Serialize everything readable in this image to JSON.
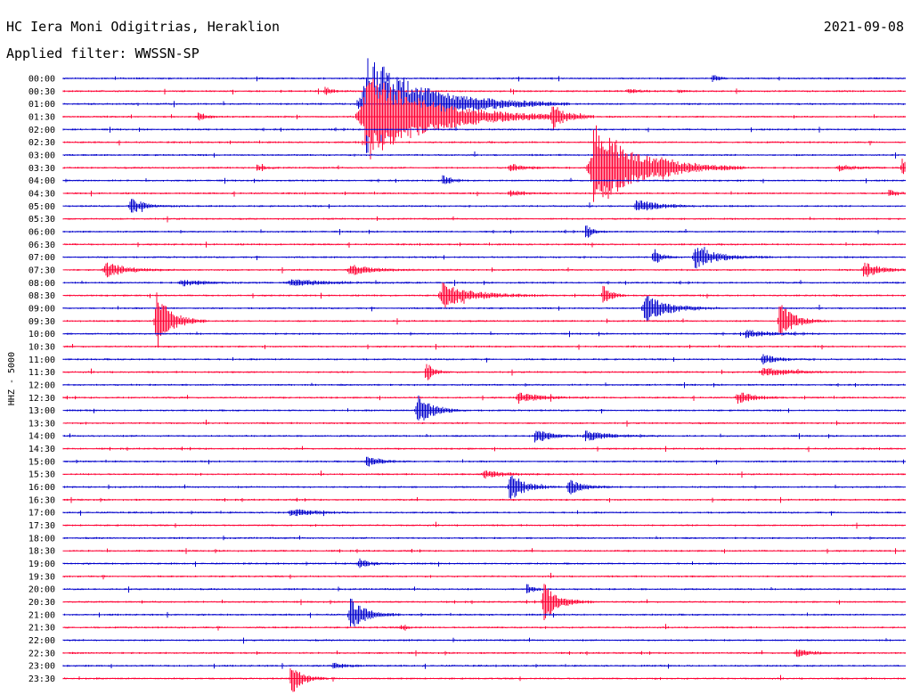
{
  "header": {
    "station": "HC Iera Moni Odigitrias, Heraklion",
    "date": "2021-09-08",
    "filter_label": "Applied filter: WWSSN-SP"
  },
  "colors": {
    "odd_trace": "#0000cc",
    "even_trace": "#ff0033",
    "text": "#000000"
  },
  "chart_data": {
    "type": "line",
    "subtype": "helicorder",
    "title": "HC Iera Moni Odigitrias, Heraklion",
    "date": "2021-09-08",
    "filter": "WWSSN-SP",
    "ylabel": "HHZ - 5000",
    "row_labels": [
      "00:00",
      "00:30",
      "01:00",
      "01:30",
      "02:00",
      "02:30",
      "03:00",
      "03:30",
      "04:00",
      "04:30",
      "05:00",
      "05:30",
      "06:00",
      "06:30",
      "07:00",
      "07:30",
      "08:00",
      "08:30",
      "09:00",
      "09:30",
      "10:00",
      "10:30",
      "11:00",
      "11:30",
      "12:00",
      "12:30",
      "13:00",
      "13:30",
      "14:00",
      "14:30",
      "15:00",
      "15:30",
      "16:00",
      "16:30",
      "17:00",
      "17:30",
      "18:00",
      "18:30",
      "19:00",
      "19:30",
      "20:00",
      "20:30",
      "21:00",
      "21:30",
      "22:00",
      "22:30",
      "23:00",
      "23:30"
    ],
    "trace_colors": [
      "#0000cc",
      "#ff0033"
    ],
    "grid": false,
    "events": [
      {
        "row": 1,
        "pos": 0.31,
        "amp": 0.35,
        "dur": 0.01
      },
      {
        "row": 1,
        "pos": 0.67,
        "amp": 0.15,
        "dur": 0.02
      },
      {
        "row": 1,
        "pos": 0.73,
        "amp": 0.15,
        "dur": 0.01
      },
      {
        "row": 0,
        "pos": 0.77,
        "amp": 0.3,
        "dur": 0.01
      },
      {
        "row": 2,
        "pos": 0.36,
        "amp": 4.0,
        "dur": 0.08
      },
      {
        "row": 3,
        "pos": 0.36,
        "amp": 3.5,
        "dur": 0.09
      },
      {
        "row": 3,
        "pos": 0.16,
        "amp": 0.4,
        "dur": 0.01
      },
      {
        "row": 3,
        "pos": 0.58,
        "amp": 1.0,
        "dur": 0.015
      },
      {
        "row": 7,
        "pos": 0.63,
        "amp": 3.5,
        "dur": 0.06
      },
      {
        "row": 7,
        "pos": 0.23,
        "amp": 0.3,
        "dur": 0.01
      },
      {
        "row": 7,
        "pos": 0.53,
        "amp": 0.3,
        "dur": 0.02
      },
      {
        "row": 7,
        "pos": 0.71,
        "amp": 0.3,
        "dur": 0.02
      },
      {
        "row": 7,
        "pos": 0.92,
        "amp": 0.25,
        "dur": 0.02
      },
      {
        "row": 7,
        "pos": 0.995,
        "amp": 0.8,
        "dur": 0.01
      },
      {
        "row": 8,
        "pos": 0.45,
        "amp": 0.4,
        "dur": 0.01
      },
      {
        "row": 9,
        "pos": 0.53,
        "amp": 0.25,
        "dur": 0.02
      },
      {
        "row": 9,
        "pos": 0.98,
        "amp": 0.3,
        "dur": 0.01
      },
      {
        "row": 10,
        "pos": 0.08,
        "amp": 0.6,
        "dur": 0.02
      },
      {
        "row": 10,
        "pos": 0.68,
        "amp": 0.5,
        "dur": 0.03
      },
      {
        "row": 12,
        "pos": 0.62,
        "amp": 0.6,
        "dur": 0.01
      },
      {
        "row": 14,
        "pos": 0.7,
        "amp": 0.8,
        "dur": 0.01
      },
      {
        "row": 14,
        "pos": 0.75,
        "amp": 0.9,
        "dur": 0.03
      },
      {
        "row": 15,
        "pos": 0.05,
        "amp": 0.6,
        "dur": 0.03
      },
      {
        "row": 15,
        "pos": 0.34,
        "amp": 0.4,
        "dur": 0.03
      },
      {
        "row": 15,
        "pos": 0.95,
        "amp": 0.7,
        "dur": 0.02
      },
      {
        "row": 16,
        "pos": 0.14,
        "amp": 0.25,
        "dur": 0.03
      },
      {
        "row": 16,
        "pos": 0.27,
        "amp": 0.25,
        "dur": 0.05
      },
      {
        "row": 17,
        "pos": 0.45,
        "amp": 1.0,
        "dur": 0.04
      },
      {
        "row": 17,
        "pos": 0.64,
        "amp": 1.0,
        "dur": 0.01
      },
      {
        "row": 18,
        "pos": 0.69,
        "amp": 1.2,
        "dur": 0.03
      },
      {
        "row": 19,
        "pos": 0.11,
        "amp": 2.8,
        "dur": 0.02
      },
      {
        "row": 19,
        "pos": 0.85,
        "amp": 1.5,
        "dur": 0.02
      },
      {
        "row": 20,
        "pos": 0.81,
        "amp": 0.3,
        "dur": 0.03
      },
      {
        "row": 22,
        "pos": 0.83,
        "amp": 0.4,
        "dur": 0.02
      },
      {
        "row": 23,
        "pos": 0.43,
        "amp": 0.9,
        "dur": 0.01
      },
      {
        "row": 23,
        "pos": 0.83,
        "amp": 0.3,
        "dur": 0.04
      },
      {
        "row": 25,
        "pos": 0.54,
        "amp": 0.4,
        "dur": 0.03
      },
      {
        "row": 25,
        "pos": 0.8,
        "amp": 0.5,
        "dur": 0.02
      },
      {
        "row": 26,
        "pos": 0.42,
        "amp": 1.4,
        "dur": 0.02
      },
      {
        "row": 28,
        "pos": 0.56,
        "amp": 0.6,
        "dur": 0.02
      },
      {
        "row": 28,
        "pos": 0.62,
        "amp": 0.4,
        "dur": 0.03
      },
      {
        "row": 30,
        "pos": 0.36,
        "amp": 0.4,
        "dur": 0.02
      },
      {
        "row": 31,
        "pos": 0.5,
        "amp": 0.3,
        "dur": 0.03
      },
      {
        "row": 32,
        "pos": 0.53,
        "amp": 1.2,
        "dur": 0.02
      },
      {
        "row": 32,
        "pos": 0.6,
        "amp": 0.6,
        "dur": 0.02
      },
      {
        "row": 34,
        "pos": 0.27,
        "amp": 0.3,
        "dur": 0.03
      },
      {
        "row": 38,
        "pos": 0.35,
        "amp": 0.4,
        "dur": 0.015
      },
      {
        "row": 40,
        "pos": 0.55,
        "amp": 0.4,
        "dur": 0.01
      },
      {
        "row": 41,
        "pos": 0.57,
        "amp": 1.6,
        "dur": 0.02
      },
      {
        "row": 42,
        "pos": 0.34,
        "amp": 1.4,
        "dur": 0.02
      },
      {
        "row": 43,
        "pos": 0.4,
        "amp": 0.2,
        "dur": 0.01
      },
      {
        "row": 45,
        "pos": 0.87,
        "amp": 0.3,
        "dur": 0.02
      },
      {
        "row": 46,
        "pos": 0.32,
        "amp": 0.2,
        "dur": 0.02
      },
      {
        "row": 47,
        "pos": 0.27,
        "amp": 1.4,
        "dur": 0.015
      }
    ]
  }
}
